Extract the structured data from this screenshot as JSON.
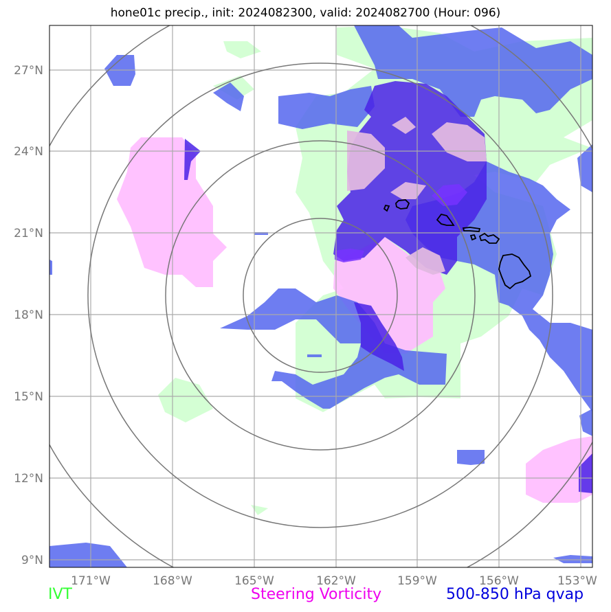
{
  "title": "hone01c precip., init: 2024082300, valid: 2024082700 (Hour: 096)",
  "lat_labels": [
    "27°N",
    "24°N",
    "21°N",
    "18°N",
    "15°N",
    "12°N",
    "9°N"
  ],
  "lon_labels": [
    "171°W",
    "168°W",
    "165°W",
    "162°W",
    "159°W",
    "156°W",
    "153°W"
  ],
  "legend": {
    "ivt": {
      "label": "IVT",
      "color": "#33ff33"
    },
    "vorticity": {
      "label": "Steering Vorticity",
      "color": "#ee00ee"
    },
    "qvap": {
      "label": "500-850 hPa qvap",
      "color": "#0000dd"
    }
  },
  "colors": {
    "ivt_fill": "#ccffcc",
    "vorticity_fill": "#ffaaff",
    "qvap_fill": "#5555ee",
    "qvap_deep": "#4411ee",
    "gridline": "#aaaaaa",
    "range_ring": "#777777",
    "coastline": "#000000"
  },
  "map_extent": {
    "lon_min": -172.5,
    "lon_max": -152.5,
    "lat_min": 8.5,
    "lat_max": 28.6
  },
  "range_rings_center": {
    "lon": -162.5,
    "lat": 18.8
  }
}
